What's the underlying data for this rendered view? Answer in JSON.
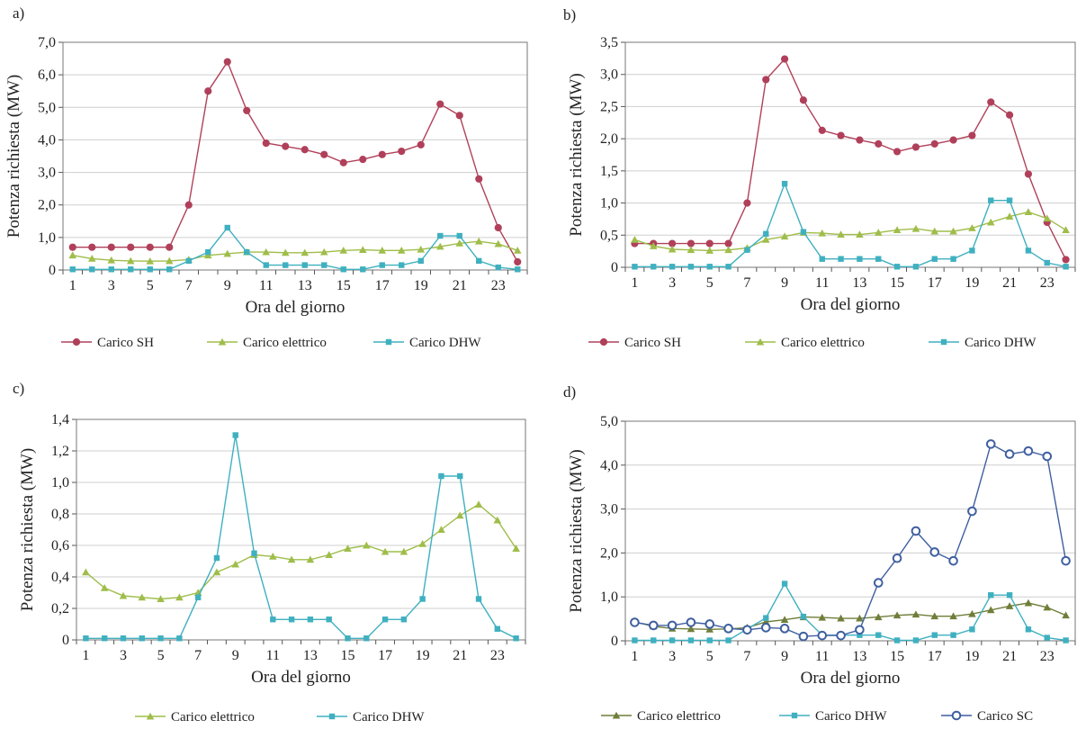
{
  "chart_data": [
    {
      "panel_label": "a)",
      "type": "line",
      "xlabel": "Ora del giorno",
      "ylabel": "Potenza richiesta (MW)",
      "x": [
        1,
        2,
        3,
        4,
        5,
        6,
        7,
        8,
        9,
        10,
        11,
        12,
        13,
        14,
        15,
        16,
        17,
        18,
        19,
        20,
        21,
        22,
        23,
        24
      ],
      "x_tick_labels": [
        "1",
        "3",
        "5",
        "7",
        "9",
        "11",
        "13",
        "15",
        "17",
        "19",
        "21",
        "23"
      ],
      "x_tick_values": [
        1,
        3,
        5,
        7,
        9,
        11,
        13,
        15,
        17,
        19,
        21,
        23
      ],
      "ylim": [
        0,
        7
      ],
      "y_tick_values": [
        0,
        1,
        2,
        3,
        4,
        5,
        6,
        7
      ],
      "y_tick_labels": [
        "0",
        "1,0",
        "2,0",
        "3,0",
        "4,0",
        "5,0",
        "6,0",
        "7,0"
      ],
      "grid": "horizontal",
      "legend_position": "bottom",
      "series": [
        {
          "name": "Carico SH",
          "color": "#b0405a",
          "marker": "circle",
          "values": [
            0.7,
            0.7,
            0.7,
            0.7,
            0.7,
            0.7,
            2.0,
            5.5,
            6.4,
            4.9,
            3.9,
            3.8,
            3.7,
            3.55,
            3.3,
            3.4,
            3.55,
            3.65,
            3.85,
            5.1,
            4.75,
            2.8,
            1.3,
            0.25
          ]
        },
        {
          "name": "Carico elettrico",
          "color": "#9fbd4a",
          "marker": "triangle",
          "values": [
            0.45,
            0.35,
            0.3,
            0.28,
            0.27,
            0.28,
            0.32,
            0.45,
            0.5,
            0.55,
            0.55,
            0.53,
            0.53,
            0.55,
            0.6,
            0.62,
            0.6,
            0.6,
            0.63,
            0.72,
            0.82,
            0.88,
            0.8,
            0.6
          ]
        },
        {
          "name": "Carico DHW",
          "color": "#3fb0c0",
          "marker": "square",
          "values": [
            0.02,
            0.02,
            0.02,
            0.02,
            0.02,
            0.02,
            0.28,
            0.55,
            1.3,
            0.55,
            0.15,
            0.15,
            0.15,
            0.15,
            0.02,
            0.02,
            0.15,
            0.15,
            0.28,
            1.05,
            1.05,
            0.28,
            0.08,
            0.02
          ]
        }
      ]
    },
    {
      "panel_label": "b)",
      "type": "line",
      "xlabel": "Ora del giorno",
      "ylabel": "Potenza richiesta (MW)",
      "x": [
        1,
        2,
        3,
        4,
        5,
        6,
        7,
        8,
        9,
        10,
        11,
        12,
        13,
        14,
        15,
        16,
        17,
        18,
        19,
        20,
        21,
        22,
        23,
        24
      ],
      "x_tick_labels": [
        "1",
        "3",
        "5",
        "7",
        "9",
        "11",
        "13",
        "15",
        "17",
        "19",
        "21",
        "23"
      ],
      "x_tick_values": [
        1,
        3,
        5,
        7,
        9,
        11,
        13,
        15,
        17,
        19,
        21,
        23
      ],
      "ylim": [
        0,
        3.5
      ],
      "y_tick_values": [
        0,
        0.5,
        1,
        1.5,
        2,
        2.5,
        3,
        3.5
      ],
      "y_tick_labels": [
        "0",
        "0,5",
        "1,0",
        "1,5",
        "2,0",
        "2,5",
        "3,0",
        "3,5"
      ],
      "grid": "horizontal",
      "legend_position": "bottom",
      "series": [
        {
          "name": "Carico SH",
          "color": "#b0405a",
          "marker": "circle",
          "values": [
            0.37,
            0.37,
            0.37,
            0.37,
            0.37,
            0.37,
            1.0,
            2.92,
            3.24,
            2.6,
            2.13,
            2.05,
            1.98,
            1.92,
            1.8,
            1.87,
            1.92,
            1.98,
            2.05,
            2.57,
            2.37,
            1.45,
            0.7,
            0.12
          ]
        },
        {
          "name": "Carico elettrico",
          "color": "#9fbd4a",
          "marker": "triangle",
          "values": [
            0.43,
            0.33,
            0.28,
            0.27,
            0.26,
            0.27,
            0.3,
            0.43,
            0.48,
            0.54,
            0.53,
            0.51,
            0.51,
            0.54,
            0.58,
            0.6,
            0.56,
            0.56,
            0.61,
            0.7,
            0.79,
            0.86,
            0.76,
            0.58
          ]
        },
        {
          "name": "Carico DHW",
          "color": "#3fb0c0",
          "marker": "square",
          "values": [
            0.01,
            0.01,
            0.01,
            0.01,
            0.01,
            0.01,
            0.27,
            0.52,
            1.3,
            0.55,
            0.13,
            0.13,
            0.13,
            0.13,
            0.01,
            0.01,
            0.13,
            0.13,
            0.26,
            1.04,
            1.04,
            0.26,
            0.07,
            0.01
          ]
        }
      ]
    },
    {
      "panel_label": "c)",
      "type": "line",
      "xlabel": "Ora del giorno",
      "ylabel": "Potenza richiesta (MW)",
      "x": [
        1,
        2,
        3,
        4,
        5,
        6,
        7,
        8,
        9,
        10,
        11,
        12,
        13,
        14,
        15,
        16,
        17,
        18,
        19,
        20,
        21,
        22,
        23,
        24
      ],
      "x_tick_labels": [
        "1",
        "3",
        "5",
        "7",
        "9",
        "11",
        "13",
        "15",
        "17",
        "19",
        "21",
        "23"
      ],
      "x_tick_values": [
        1,
        3,
        5,
        7,
        9,
        11,
        13,
        15,
        17,
        19,
        21,
        23
      ],
      "ylim": [
        0,
        1.4
      ],
      "y_tick_values": [
        0,
        0.2,
        0.4,
        0.6,
        0.8,
        1,
        1.2,
        1.4
      ],
      "y_tick_labels": [
        "0",
        "0,2",
        "0,4",
        "0,6",
        "0,8",
        "1,0",
        "1,2",
        "1,4"
      ],
      "grid": "horizontal",
      "legend_position": "bottom",
      "series": [
        {
          "name": "Carico elettrico",
          "color": "#9fbd4a",
          "marker": "triangle",
          "values": [
            0.43,
            0.33,
            0.28,
            0.27,
            0.26,
            0.27,
            0.3,
            0.43,
            0.48,
            0.54,
            0.53,
            0.51,
            0.51,
            0.54,
            0.58,
            0.6,
            0.56,
            0.56,
            0.61,
            0.7,
            0.79,
            0.86,
            0.76,
            0.58
          ]
        },
        {
          "name": "Carico DHW",
          "color": "#3fb0c0",
          "marker": "square",
          "values": [
            0.01,
            0.01,
            0.01,
            0.01,
            0.01,
            0.01,
            0.27,
            0.52,
            1.3,
            0.55,
            0.13,
            0.13,
            0.13,
            0.13,
            0.01,
            0.01,
            0.13,
            0.13,
            0.26,
            1.04,
            1.04,
            0.26,
            0.07,
            0.01
          ]
        }
      ]
    },
    {
      "panel_label": "d)",
      "type": "line",
      "xlabel": "Ora del giorno",
      "ylabel": "Potenza richiesta (MW)",
      "x": [
        1,
        2,
        3,
        4,
        5,
        6,
        7,
        8,
        9,
        10,
        11,
        12,
        13,
        14,
        15,
        16,
        17,
        18,
        19,
        20,
        21,
        22,
        23,
        24
      ],
      "x_tick_labels": [
        "1",
        "3",
        "5",
        "7",
        "9",
        "11",
        "13",
        "15",
        "17",
        "19",
        "21",
        "23"
      ],
      "x_tick_values": [
        1,
        3,
        5,
        7,
        9,
        11,
        13,
        15,
        17,
        19,
        21,
        23
      ],
      "ylim": [
        0,
        5
      ],
      "y_tick_values": [
        0,
        1,
        2,
        3,
        4,
        5
      ],
      "y_tick_labels": [
        "0",
        "1,0",
        "2,0",
        "3,0",
        "4,0",
        "5,0"
      ],
      "grid": "horizontal",
      "legend_position": "bottom",
      "series": [
        {
          "name": "Carico elettrico",
          "color": "#6f7f3a",
          "marker": "triangle",
          "values": [
            0.43,
            0.33,
            0.28,
            0.27,
            0.26,
            0.27,
            0.3,
            0.43,
            0.48,
            0.54,
            0.53,
            0.51,
            0.51,
            0.54,
            0.58,
            0.6,
            0.56,
            0.56,
            0.61,
            0.7,
            0.79,
            0.86,
            0.76,
            0.58
          ]
        },
        {
          "name": "Carico DHW",
          "color": "#3fb0c0",
          "marker": "square",
          "values": [
            0.01,
            0.01,
            0.01,
            0.01,
            0.01,
            0.01,
            0.27,
            0.52,
            1.3,
            0.55,
            0.13,
            0.13,
            0.13,
            0.13,
            0.01,
            0.01,
            0.13,
            0.13,
            0.26,
            1.04,
            1.04,
            0.26,
            0.07,
            0.01
          ]
        },
        {
          "name": "Carico SC",
          "color": "#3f5fa0",
          "marker": "open-circle",
          "values": [
            0.42,
            0.35,
            0.35,
            0.42,
            0.38,
            0.28,
            0.25,
            0.3,
            0.28,
            0.1,
            0.12,
            0.12,
            0.25,
            1.32,
            1.88,
            2.5,
            2.02,
            1.82,
            2.95,
            4.48,
            4.25,
            4.32,
            4.2,
            1.82
          ]
        }
      ]
    }
  ]
}
